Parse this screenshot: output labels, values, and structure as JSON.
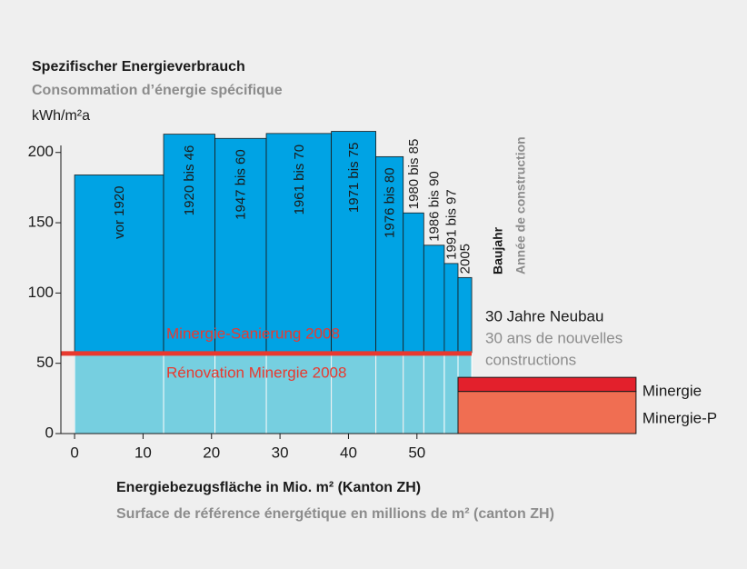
{
  "chart_data": {
    "type": "bar",
    "title": "Spezifischer Energieverbrauch",
    "subtitle": "Consommation d’énergie spécifique",
    "y_unit": "kWh/m²a",
    "xlabel": "Energiebezugsfläche in Mio. m² (Kanton ZH)",
    "xlabel_fr": "Surface de référence énergétique en millions de m² (canton ZH)",
    "category_title": "Baujahr",
    "category_title_fr": "Année de construction",
    "categories": [
      "vor 1920",
      "1920 bis 46",
      "1947 bis 60",
      "1961 bis 70",
      "1971 bis 75",
      "1976 bis 80",
      "1980 bis 85",
      "1986 bis 90",
      "1991 bis 97",
      "2005"
    ],
    "bins": [
      0,
      13,
      20.5,
      28,
      37.5,
      44,
      48,
      51,
      54,
      56,
      58
    ],
    "values": [
      184,
      213,
      210,
      213.5,
      215,
      197,
      157,
      134,
      121,
      111
    ],
    "color": "#00a3e4",
    "base_color": "#76cfe0",
    "reference_line": {
      "value": 57,
      "labels": [
        "Minergie-Sanierung 2008",
        "Rénovation Minergie 2008"
      ],
      "color": "#e8392f"
    },
    "new_build": {
      "title": "30 Jahre Neubau",
      "title_fr": [
        "30 ans de nouvelles",
        "constructions"
      ],
      "x": [
        56,
        82
      ],
      "series": [
        {
          "name": "Minergie-P",
          "color": "#f06e52",
          "values": [
            30
          ]
        },
        {
          "name": "Minergie",
          "color": "#e3202c",
          "values": [
            10
          ]
        }
      ]
    },
    "xlim": [
      -2,
      56
    ],
    "ylim": [
      0,
      205
    ],
    "xticks": [
      0,
      10,
      20,
      30,
      40,
      50
    ],
    "yticks": [
      0,
      50,
      100,
      150,
      200
    ]
  }
}
